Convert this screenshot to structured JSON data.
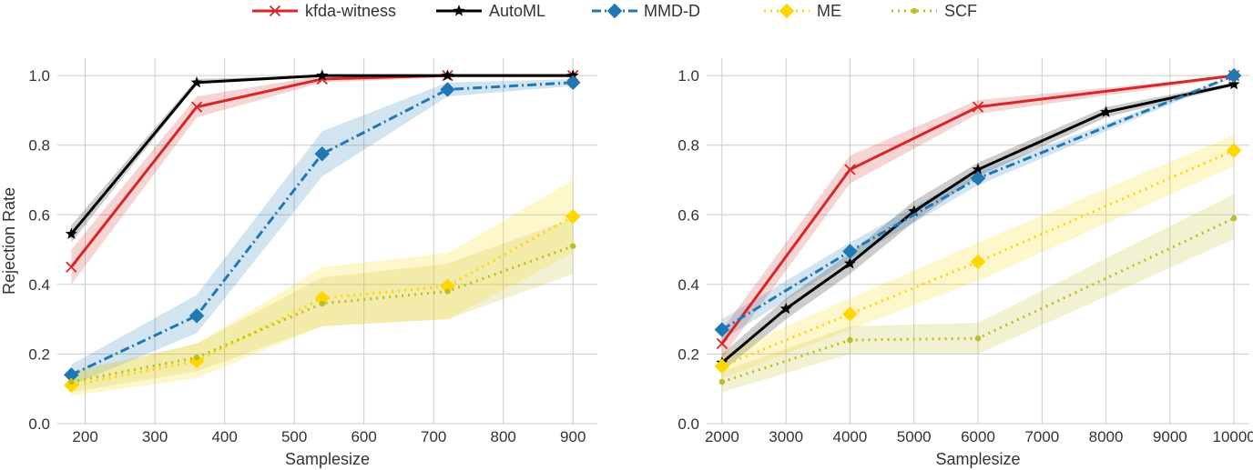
{
  "legend": [
    {
      "name": "kfda-witness",
      "color": "#d62728",
      "marker": "x",
      "dash": "solid"
    },
    {
      "name": "AutoML",
      "color": "#000000",
      "marker": "star",
      "dash": "solid"
    },
    {
      "name": "MMD-D",
      "color": "#1f77b4",
      "marker": "diamond",
      "dash": "dashdot"
    },
    {
      "name": "ME",
      "color": "#ffd700",
      "marker": "diamond",
      "dash": "dotted"
    },
    {
      "name": "SCF",
      "color": "#bcbd22",
      "marker": "dot",
      "dash": "dotted"
    }
  ],
  "chart_data": [
    {
      "type": "line",
      "xlabel": "Samplesize",
      "ylabel": "Rejection Rate",
      "xlim": [
        160,
        935
      ],
      "ylim": [
        0.0,
        1.05
      ],
      "xticks": [
        200,
        300,
        400,
        500,
        600,
        700,
        800,
        900
      ],
      "yticks": [
        0.0,
        0.2,
        0.4,
        0.6,
        0.8,
        1.0
      ],
      "ytick_labels": [
        "0.0",
        "0.2",
        "0.4",
        "0.6",
        "0.8",
        "1.0"
      ],
      "grid": true,
      "x": [
        180,
        360,
        540,
        720,
        900
      ],
      "series": [
        {
          "name": "kfda-witness",
          "values": [
            0.45,
            0.91,
            0.99,
            1.0,
            1.0
          ],
          "lower": [
            0.4,
            0.88,
            0.98,
            0.995,
            0.995
          ],
          "upper": [
            0.5,
            0.94,
            1.0,
            1.0,
            1.0
          ]
        },
        {
          "name": "AutoML",
          "values": [
            0.545,
            0.98,
            1.0,
            1.0,
            1.0
          ],
          "lower": [
            0.52,
            0.975,
            0.998,
            0.998,
            0.998
          ],
          "upper": [
            0.57,
            0.99,
            1.0,
            1.0,
            1.0
          ]
        },
        {
          "name": "MMD-D",
          "values": [
            0.14,
            0.31,
            0.775,
            0.96,
            0.98
          ],
          "lower": [
            0.11,
            0.26,
            0.71,
            0.94,
            0.97
          ],
          "upper": [
            0.17,
            0.37,
            0.84,
            0.98,
            0.99
          ]
        },
        {
          "name": "ME",
          "values": [
            0.11,
            0.18,
            0.36,
            0.395,
            0.595
          ],
          "lower": [
            0.08,
            0.13,
            0.28,
            0.3,
            0.49
          ],
          "upper": [
            0.14,
            0.23,
            0.45,
            0.49,
            0.7
          ]
        },
        {
          "name": "SCF",
          "values": [
            0.12,
            0.19,
            0.345,
            0.38,
            0.51
          ],
          "lower": [
            0.09,
            0.15,
            0.28,
            0.3,
            0.43
          ],
          "upper": [
            0.15,
            0.23,
            0.42,
            0.46,
            0.59
          ]
        }
      ]
    },
    {
      "type": "line",
      "xlabel": "Samplesize",
      "ylabel": "",
      "xlim": [
        1760,
        10240
      ],
      "ylim": [
        0.0,
        1.05
      ],
      "xticks": [
        2000,
        3000,
        4000,
        5000,
        6000,
        7000,
        8000,
        9000,
        10000
      ],
      "yticks": [
        0.0,
        0.2,
        0.4,
        0.6,
        0.8,
        1.0
      ],
      "ytick_labels": [
        "0.0",
        "0.2",
        "0.4",
        "0.6",
        "0.8",
        "1.0"
      ],
      "grid": true,
      "series": [
        {
          "name": "kfda-witness",
          "x": [
            2000,
            4000,
            6000,
            10000
          ],
          "values": [
            0.23,
            0.73,
            0.91,
            1.0
          ],
          "lower": [
            0.19,
            0.69,
            0.89,
            0.995
          ],
          "upper": [
            0.27,
            0.77,
            0.93,
            1.0
          ]
        },
        {
          "name": "AutoML",
          "x": [
            2000,
            3000,
            4000,
            5000,
            6000,
            8000,
            10000
          ],
          "values": [
            0.175,
            0.33,
            0.46,
            0.61,
            0.73,
            0.895,
            0.975
          ],
          "lower": [
            0.15,
            0.3,
            0.43,
            0.58,
            0.71,
            0.88,
            0.97
          ],
          "upper": [
            0.2,
            0.36,
            0.49,
            0.64,
            0.75,
            0.91,
            0.98
          ]
        },
        {
          "name": "MMD-D",
          "x": [
            2000,
            4000,
            6000,
            10000
          ],
          "values": [
            0.27,
            0.495,
            0.705,
            1.0
          ],
          "lower": [
            0.24,
            0.47,
            0.685,
            0.995
          ],
          "upper": [
            0.3,
            0.52,
            0.725,
            1.0
          ]
        },
        {
          "name": "ME",
          "x": [
            2000,
            4000,
            6000,
            10000
          ],
          "values": [
            0.165,
            0.315,
            0.465,
            0.785
          ],
          "lower": [
            0.13,
            0.27,
            0.41,
            0.74
          ],
          "upper": [
            0.2,
            0.36,
            0.52,
            0.83
          ]
        },
        {
          "name": "SCF",
          "x": [
            2000,
            4000,
            6000,
            10000
          ],
          "values": [
            0.12,
            0.24,
            0.245,
            0.59
          ],
          "lower": [
            0.09,
            0.2,
            0.2,
            0.53
          ],
          "upper": [
            0.15,
            0.28,
            0.29,
            0.66
          ]
        }
      ]
    }
  ]
}
